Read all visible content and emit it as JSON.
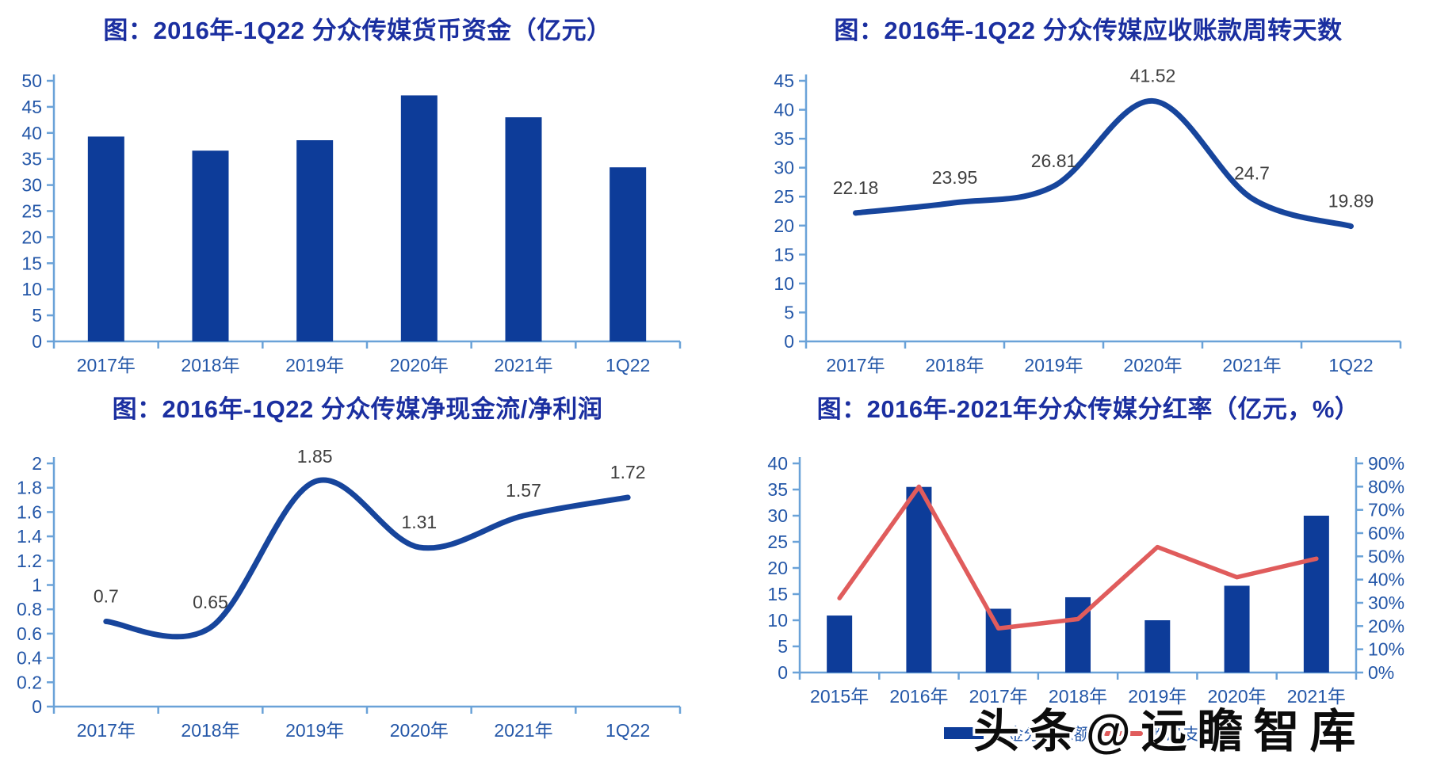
{
  "watermark": {
    "text": "头条@远瞻智库"
  },
  "colors": {
    "title": "#1b2fa0",
    "tick_label": "#2457a8",
    "axis_line": "#6aa2d8",
    "bar": "#0d3c99",
    "line": "#17459c",
    "red_line": "#e05c5c",
    "data_label": "#3f3f3f"
  },
  "chart_data": [
    {
      "type": "bar",
      "title": "图：2016年-1Q22 分众传媒货币资金（亿元）",
      "categories": [
        "2017年",
        "2018年",
        "2019年",
        "2020年",
        "2021年",
        "1Q22"
      ],
      "values": [
        39.3,
        36.6,
        38.6,
        47.2,
        43.0,
        33.4
      ],
      "ylim": [
        0,
        50
      ],
      "ytick_step": 5,
      "grid": false,
      "legend_position": "none"
    },
    {
      "type": "line",
      "title": "图：2016年-1Q22 分众传媒应收账款周转天数",
      "categories": [
        "2017年",
        "2018年",
        "2019年",
        "2020年",
        "2021年",
        "1Q22"
      ],
      "values": [
        22.18,
        23.95,
        26.81,
        41.52,
        24.7,
        19.89
      ],
      "point_labels": [
        "22.18",
        "23.95",
        "26.81",
        "41.52",
        "24.7",
        "19.89"
      ],
      "ylim": [
        0,
        45
      ],
      "ytick_step": 5,
      "smooth": true,
      "grid": false,
      "legend_position": "none"
    },
    {
      "type": "line",
      "title": "图：2016年-1Q22 分众传媒净现金流/净利润",
      "categories": [
        "2017年",
        "2018年",
        "2019年",
        "2020年",
        "2021年",
        "1Q22"
      ],
      "values": [
        0.7,
        0.65,
        1.85,
        1.31,
        1.57,
        1.72
      ],
      "point_labels": [
        "0.7",
        "0.65",
        "1.85",
        "1.31",
        "1.57",
        "1.72"
      ],
      "ylim": [
        0,
        2
      ],
      "ytick_step": 0.2,
      "smooth": true,
      "grid": false,
      "legend_position": "none"
    },
    {
      "type": "combo",
      "title": "图：2016年-2021年分众传媒分红率（亿元，%）",
      "categories": [
        "2015年",
        "2016年",
        "2017年",
        "2018年",
        "2019年",
        "2020年",
        "2021年"
      ],
      "series": [
        {
          "name": "现金分红总额",
          "chart": "bar",
          "axis": "left",
          "values": [
            10.9,
            35.5,
            12.2,
            14.4,
            10.0,
            16.6,
            30.0
          ]
        },
        {
          "name": "股息支付率",
          "chart": "line",
          "axis": "right",
          "values": [
            32,
            80,
            19,
            23,
            54,
            41,
            49
          ]
        }
      ],
      "ylim_left": [
        0,
        40
      ],
      "ytick_step_left": 5,
      "ylim_right": [
        0,
        90
      ],
      "ytick_step_right": 10,
      "right_tick_suffix": "%",
      "grid": false,
      "legend_position": "bottom"
    }
  ]
}
